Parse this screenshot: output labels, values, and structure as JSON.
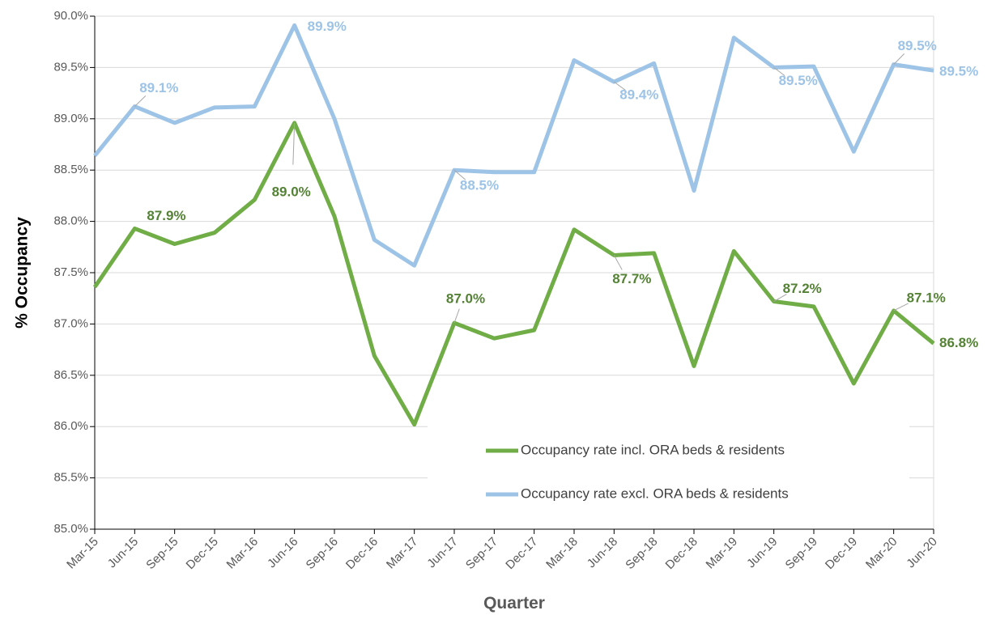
{
  "chart_data": {
    "type": "line",
    "x_label": "Quarter",
    "y_label": "% Occupancy",
    "categories": [
      "Mar-15",
      "Jun-15",
      "Sep-15",
      "Dec-15",
      "Mar-16",
      "Jun-16",
      "Sep-16",
      "Dec-16",
      "Mar-17",
      "Jun-17",
      "Sep-17",
      "Dec-17",
      "Mar-18",
      "Jun-18",
      "Sep-18",
      "Dec-18",
      "Mar-19",
      "Jun-19",
      "Sep-19",
      "Dec-19",
      "Mar-20",
      "Jun-20"
    ],
    "series": [
      {
        "name": "Occupancy rate incl. ORA beds & residents",
        "color": "#70ad47",
        "label_color": "#548235",
        "values": [
          87.36,
          87.93,
          87.78,
          87.89,
          88.21,
          88.96,
          88.05,
          86.69,
          86.02,
          87.01,
          86.86,
          86.94,
          87.92,
          87.67,
          87.69,
          86.59,
          87.71,
          87.22,
          87.17,
          86.42,
          87.13,
          86.81
        ],
        "value_labels": [
          null,
          "87.9%",
          null,
          null,
          null,
          "89.0%",
          null,
          null,
          null,
          "87.0%",
          null,
          null,
          null,
          "87.7%",
          null,
          null,
          null,
          "87.2%",
          null,
          null,
          "87.1%",
          "86.8%"
        ]
      },
      {
        "name": "Occupancy rate excl. ORA beds & residents",
        "color": "#9dc3e6",
        "label_color": "#9dc3e6",
        "values": [
          88.64,
          89.12,
          88.96,
          89.11,
          89.12,
          89.91,
          89.0,
          87.82,
          87.57,
          88.5,
          88.48,
          88.48,
          89.57,
          89.36,
          89.54,
          88.3,
          89.79,
          89.5,
          89.51,
          88.68,
          89.53,
          89.47
        ],
        "value_labels": [
          null,
          "89.1%",
          null,
          null,
          null,
          "89.9%",
          null,
          null,
          null,
          "88.5%",
          null,
          null,
          null,
          "89.4%",
          null,
          null,
          null,
          "89.5%",
          null,
          null,
          "89.5%",
          "89.5%"
        ]
      }
    ],
    "ylim": [
      85,
      90
    ],
    "yticks": [
      {
        "value": 85,
        "label": "85.0%"
      },
      {
        "value": 85.5,
        "label": "85.5%"
      },
      {
        "value": 86,
        "label": "86.0%"
      },
      {
        "value": 86.5,
        "label": "86.5%"
      },
      {
        "value": 87,
        "label": "87.0%"
      },
      {
        "value": 87.5,
        "label": "87.5%"
      },
      {
        "value": 88,
        "label": "88.0%"
      },
      {
        "value": 88.5,
        "label": "88.5%"
      },
      {
        "value": 89,
        "label": "89.0%"
      },
      {
        "value": 89.5,
        "label": "89.5%"
      },
      {
        "value": 90,
        "label": "90.0%"
      }
    ],
    "grid": true,
    "legend": "lower right"
  }
}
